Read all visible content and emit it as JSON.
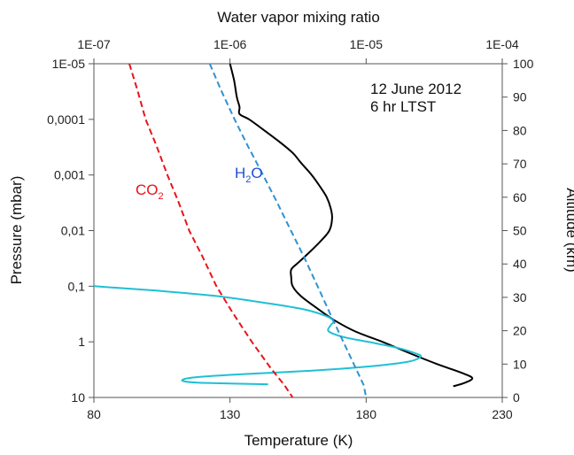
{
  "chart_data": {
    "type": "line",
    "title": "",
    "top_axis": {
      "label": "Water vapor mixing ratio",
      "scale": "log",
      "range": [
        1e-07,
        0.0001
      ],
      "tick_labels": [
        "1E-07",
        "1E-06",
        "1E-05",
        "1E-04"
      ]
    },
    "bottom_axis": {
      "label": "Temperature (K)",
      "range": [
        80,
        230
      ],
      "tick_labels": [
        "80",
        "130",
        "180",
        "230"
      ]
    },
    "left_axis": {
      "label": "Pressure (mbar)",
      "scale": "log",
      "inverted": true,
      "range": [
        1e-05,
        10
      ],
      "tick_labels": [
        "1E-05",
        "0,0001",
        "0,001",
        "0,01",
        "0,1",
        "1",
        "10"
      ]
    },
    "right_axis": {
      "label": "Altitude (km)",
      "range": [
        0,
        100
      ],
      "tick_labels": [
        "0",
        "10",
        "20",
        "30",
        "40",
        "50",
        "60",
        "70",
        "80",
        "90",
        "100"
      ]
    },
    "annotations": {
      "date": "12 June 2012",
      "time": "6 hr LTST",
      "co2_label_main": "CO",
      "co2_label_sub": "2",
      "h2o_label_main": "H",
      "h2o_label_sub": "2",
      "h2o_label_end": "O"
    },
    "series": [
      {
        "color": "#000000",
        "style": "solid",
        "axes": "temperature-pressure",
        "points": [
          [
            130,
            1e-05
          ],
          [
            131.5,
            2e-05
          ],
          [
            132.5,
            4e-05
          ],
          [
            133.5,
            6e-05
          ],
          [
            133.5,
            8e-05
          ],
          [
            137,
            0.0001
          ],
          [
            142,
            0.00015
          ],
          [
            148,
            0.00025
          ],
          [
            153,
            0.0004
          ],
          [
            156,
            0.0006
          ],
          [
            160,
            0.001
          ],
          [
            163,
            0.0016
          ],
          [
            165.5,
            0.0025
          ],
          [
            167,
            0.004
          ],
          [
            167.5,
            0.006
          ],
          [
            166.5,
            0.01
          ],
          [
            163,
            0.016
          ],
          [
            159,
            0.025
          ],
          [
            155,
            0.038
          ],
          [
            152.5,
            0.05
          ],
          [
            152.5,
            0.07
          ],
          [
            153,
            0.1
          ],
          [
            156,
            0.15
          ],
          [
            162,
            0.25
          ],
          [
            168,
            0.4
          ],
          [
            176,
            0.65
          ],
          [
            186,
            1.0
          ],
          [
            196,
            1.6
          ],
          [
            206,
            2.5
          ],
          [
            215,
            3.6
          ],
          [
            219,
            4.5
          ],
          [
            216,
            5.5
          ],
          [
            212,
            6.3
          ]
        ]
      },
      {
        "color": "#1fc0d4",
        "style": "solid",
        "axes": "temperature-pressure",
        "points": [
          [
            80,
            0.1
          ],
          [
            103,
            0.12
          ],
          [
            125,
            0.15
          ],
          [
            143,
            0.2
          ],
          [
            157,
            0.26
          ],
          [
            165,
            0.34
          ],
          [
            168,
            0.42
          ],
          [
            167,
            0.5
          ],
          [
            166,
            0.62
          ],
          [
            168,
            0.72
          ],
          [
            173,
            0.85
          ],
          [
            183,
            1.05
          ],
          [
            192,
            1.3
          ],
          [
            198,
            1.6
          ],
          [
            200,
            1.85
          ],
          [
            195,
            2.3
          ],
          [
            180,
            2.8
          ],
          [
            160,
            3.3
          ],
          [
            135,
            3.8
          ],
          [
            118,
            4.3
          ],
          [
            113,
            4.7
          ],
          [
            113,
            5.1
          ],
          [
            118,
            5.4
          ],
          [
            130,
            5.6
          ],
          [
            144,
            5.8
          ]
        ]
      },
      {
        "name": "CO2",
        "color": "#e8141b",
        "style": "dashed",
        "axes": "temperature-pressure",
        "points": [
          [
            93,
            1e-05
          ],
          [
            96,
            3e-05
          ],
          [
            99,
            0.0001
          ],
          [
            103,
            0.0003
          ],
          [
            107,
            0.001
          ],
          [
            111,
            0.003
          ],
          [
            115,
            0.01
          ],
          [
            120,
            0.03
          ],
          [
            125,
            0.1
          ],
          [
            131,
            0.3
          ],
          [
            138,
            1.0
          ],
          [
            145,
            3.0
          ],
          [
            150,
            6.0
          ],
          [
            153,
            10
          ]
        ]
      },
      {
        "name": "H2O",
        "color": "#2f92d0",
        "style": "dashed",
        "axes": "mixingratio-pressure",
        "points": [
          [
            7.1e-07,
            1e-05
          ],
          [
            8.6e-07,
            3e-05
          ],
          [
            1.08e-06,
            0.0001
          ],
          [
            1.35e-06,
            0.0003
          ],
          [
            1.75e-06,
            0.001
          ],
          [
            2.2e-06,
            0.003
          ],
          [
            2.8e-06,
            0.01
          ],
          [
            3.5e-06,
            0.03
          ],
          [
            4.4e-06,
            0.1
          ],
          [
            5.4e-06,
            0.3
          ],
          [
            6.8e-06,
            1.0
          ],
          [
            8.4e-06,
            3.0
          ],
          [
            9.6e-06,
            6.0
          ],
          [
            1e-05,
            10
          ]
        ]
      }
    ]
  }
}
